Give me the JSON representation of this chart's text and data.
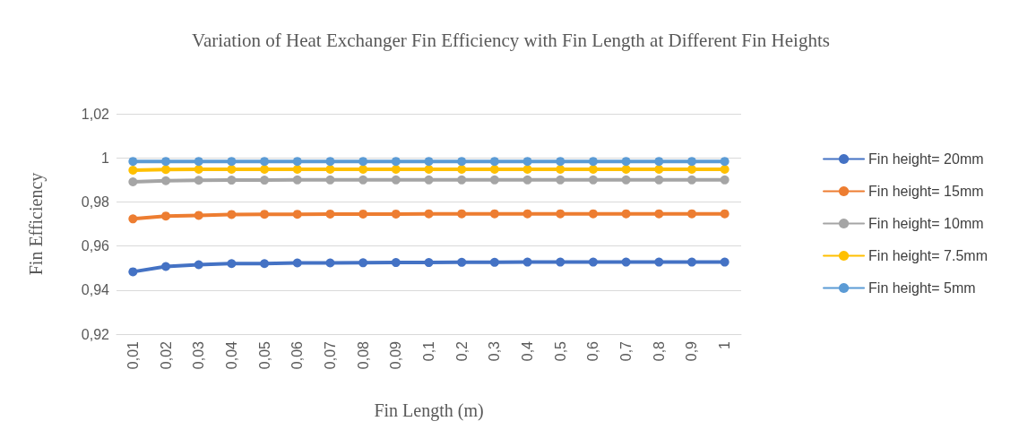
{
  "chart_data": {
    "type": "line",
    "title": "Variation of Heat Exchanger Fin Efficiency with Fin Length at Different Fin Heights",
    "xlabel": "Fin Length (m)",
    "ylabel": "Fin Efficiency",
    "categories": [
      "0,01",
      "0,02",
      "0,03",
      "0,04",
      "0,05",
      "0,06",
      "0,07",
      "0,08",
      "0,09",
      "0,1",
      "0,2",
      "0,3",
      "0,4",
      "0,5",
      "0,6",
      "0,7",
      "0,8",
      "0,9",
      "1"
    ],
    "series": [
      {
        "name": "Fin height= 20mm",
        "color": "#4472c4",
        "values": [
          0.9483,
          0.9507,
          0.9515,
          0.952,
          0.952,
          0.9523,
          0.9523,
          0.9524,
          0.9525,
          0.9525,
          0.9526,
          0.9526,
          0.9527,
          0.9527,
          0.9527,
          0.9527,
          0.9527,
          0.9527,
          0.9527
        ]
      },
      {
        "name": "Fin height= 15mm",
        "color": "#ed7d31",
        "values": [
          0.9723,
          0.9736,
          0.9739,
          0.9743,
          0.9744,
          0.9744,
          0.9745,
          0.9745,
          0.9745,
          0.9746,
          0.9746,
          0.9746,
          0.9746,
          0.9746,
          0.9746,
          0.9746,
          0.9746,
          0.9746,
          0.9746
        ]
      },
      {
        "name": "Fin height= 10mm",
        "color": "#a5a5a5",
        "values": [
          0.9891,
          0.9896,
          0.9898,
          0.9899,
          0.9899,
          0.99,
          0.99,
          0.99,
          0.99,
          0.99,
          0.99,
          0.99,
          0.99,
          0.99,
          0.99,
          0.99,
          0.99,
          0.99,
          0.99
        ]
      },
      {
        "name": "Fin height= 7.5mm",
        "color": "#ffc000",
        "values": [
          0.9944,
          0.9947,
          0.9948,
          0.9948,
          0.9948,
          0.9948,
          0.9948,
          0.9948,
          0.9948,
          0.9948,
          0.9948,
          0.9948,
          0.9948,
          0.9948,
          0.9948,
          0.9948,
          0.9948,
          0.9948,
          0.9948
        ]
      },
      {
        "name": "Fin height= 5mm",
        "color": "#5b9bd5",
        "values": [
          0.9984,
          0.9984,
          0.9984,
          0.9984,
          0.9984,
          0.9984,
          0.9984,
          0.9984,
          0.9984,
          0.9984,
          0.9984,
          0.9984,
          0.9984,
          0.9984,
          0.9984,
          0.9984,
          0.9984,
          0.9984,
          0.9984
        ]
      }
    ],
    "ylim": [
      0.92,
      1.02
    ],
    "yticks": [
      {
        "value": 0.92,
        "label": "0,92"
      },
      {
        "value": 0.94,
        "label": "0,94"
      },
      {
        "value": 0.96,
        "label": "0,96"
      },
      {
        "value": 0.98,
        "label": "0,98"
      },
      {
        "value": 1,
        "label": "1"
      },
      {
        "value": 1.02,
        "label": "1,02"
      }
    ],
    "grid": "y",
    "legend": "right",
    "marker": "circle",
    "line_style": "solid"
  }
}
